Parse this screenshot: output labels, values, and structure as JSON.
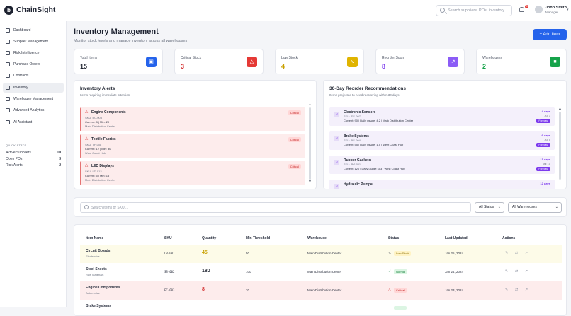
{
  "app": {
    "logo_letter": "b",
    "brand": "ChainSight",
    "search_placeholder": "Search suppliers, POs, inventory...",
    "notification_count": "3",
    "user_name": "John Smith",
    "user_role": "Manager"
  },
  "sidebar": {
    "items": [
      {
        "label": "Dashboard",
        "icon": "dashboard-icon"
      },
      {
        "label": "Supplier Management",
        "icon": "users-icon"
      },
      {
        "label": "Risk Intelligence",
        "icon": "warning-icon"
      },
      {
        "label": "Purchase Orders",
        "icon": "cart-icon"
      },
      {
        "label": "Contracts",
        "icon": "document-icon"
      },
      {
        "label": "Inventory",
        "icon": "box-icon",
        "active": true
      },
      {
        "label": "Warehouse Management",
        "icon": "warehouse-icon"
      },
      {
        "label": "Advanced Analytics",
        "icon": "chart-icon"
      },
      {
        "label": "AI Assistant",
        "icon": "sparkle-icon"
      }
    ],
    "quick_stats_title": "QUICK STATS",
    "quick_stats": [
      {
        "label": "Active Suppliers",
        "value": "10"
      },
      {
        "label": "Open POs",
        "value": "3"
      },
      {
        "label": "Risk Alerts",
        "value": "2"
      }
    ]
  },
  "page": {
    "title": "Inventory Management",
    "subtitle": "Monitor stock levels and manage inventory across all warehouses",
    "add_button": "+ Add Item"
  },
  "stats": [
    {
      "label": "Total Items",
      "value": "15",
      "color": "#1f2430",
      "icon_color": "#2563eb",
      "icon": "cube-icon"
    },
    {
      "label": "Critical Stock",
      "value": "3",
      "color": "#d32f2f",
      "icon_color": "#e53935",
      "icon": "alert-icon"
    },
    {
      "label": "Low Stock",
      "value": "4",
      "color": "#c9a000",
      "icon_color": "#e0b400",
      "icon": "trend-down-icon"
    },
    {
      "label": "Reorder Soon",
      "value": "8",
      "color": "#7c3aed",
      "icon_color": "#8b5cf6",
      "icon": "trend-up-icon"
    },
    {
      "label": "Warehouses",
      "value": "2",
      "color": "#16a34a",
      "icon_color": "#16a34a",
      "icon": "warehouse-icon"
    }
  ],
  "alerts": {
    "title": "Inventory Alerts",
    "subtitle": "Items requiring immediate attention",
    "items": [
      {
        "name": "Engine Components",
        "sku": "SKU: EC-003",
        "current": "Current: 8 | Min: 20",
        "warehouse": "Main Distribution Center",
        "badge": "Critical"
      },
      {
        "name": "Textile Fabrics",
        "sku": "SKU: TF-008",
        "current": "Current: 12 | Min: 30",
        "warehouse": "West Coast Hub",
        "badge": "Critical"
      },
      {
        "name": "LED Displays",
        "sku": "SKU: LD-012",
        "current": "Current: 5 | Min: 15",
        "warehouse": "Main Distribution Center",
        "badge": "Critical"
      }
    ]
  },
  "reorder": {
    "title": "30-Day Reorder Recommendations",
    "subtitle": "Items projected to need reordering within 30 days",
    "items": [
      {
        "name": "Electronic Sensors",
        "sku": "SKU: ES-007",
        "current": "Current: 90 | Daily usage: 4.2 | Main Distribution Center",
        "days": "4 days",
        "date": "Jul 3",
        "badge": "Forecast"
      },
      {
        "name": "Brake Systems",
        "sku": "SKU: BS-004",
        "current": "Current: 55 | Daily usage: 1.5 | West Coast Hub",
        "days": "6 days",
        "date": "Jul 5",
        "badge": "Forecast"
      },
      {
        "name": "Rubber Gaskets",
        "sku": "SKU: RG-011",
        "current": "Current: 120 | Daily usage: 3.3 | West Coast Hub",
        "days": "11 days",
        "date": "Jul 10",
        "badge": "Forecast"
      },
      {
        "name": "Hydraulic Pumps",
        "sku": "",
        "current": "",
        "days": "12 days",
        "date": "",
        "badge": ""
      }
    ]
  },
  "filters": {
    "search_placeholder": "Search items or SKU...",
    "status_select": "All Status",
    "warehouse_select": "All Warehouses"
  },
  "table": {
    "headers": [
      "Item Name",
      "SKU",
      "Quantity",
      "Min Threshold",
      "Warehouse",
      "Status",
      "Last Updated",
      "Actions"
    ],
    "rows": [
      {
        "name": "Circuit Boards",
        "category": "Electronics",
        "sku": "CB-001",
        "quantity": "45",
        "min": "50",
        "warehouse": "Main Distribution Center",
        "status": "Low Stock",
        "updated": "Jan 25, 2024",
        "bg": "#fdfbe8",
        "qty_color": "#c9a000",
        "st_bg": "#fff3c4",
        "st_color": "#8a6d00",
        "st_icon": "trend-down-icon"
      },
      {
        "name": "Steel Sheets",
        "category": "Raw Materials",
        "sku": "SS-002",
        "quantity": "180",
        "min": "100",
        "warehouse": "Main Distribution Center",
        "status": "Normal",
        "updated": "Jan 24, 2024",
        "bg": "#ffffff",
        "qty_color": "#1f2430",
        "st_bg": "#dcf5e3",
        "st_color": "#15803d",
        "st_icon": "check-icon"
      },
      {
        "name": "Engine Components",
        "category": "Automotive",
        "sku": "EC-003",
        "quantity": "8",
        "min": "20",
        "warehouse": "Main Distribution Center",
        "status": "Critical",
        "updated": "Jan 23, 2024",
        "bg": "#fdecec",
        "qty_color": "#d32f2f",
        "st_bg": "#ffd6d6",
        "st_color": "#c62828",
        "st_icon": "alert-icon"
      },
      {
        "name": "Brake Systems",
        "category": "",
        "sku": "",
        "quantity": "",
        "min": "",
        "warehouse": "",
        "status": "",
        "updated": "",
        "bg": "#ffffff",
        "qty_color": "#1f2430",
        "st_bg": "#dcf5e3",
        "st_color": "#15803d",
        "st_icon": ""
      }
    ]
  }
}
